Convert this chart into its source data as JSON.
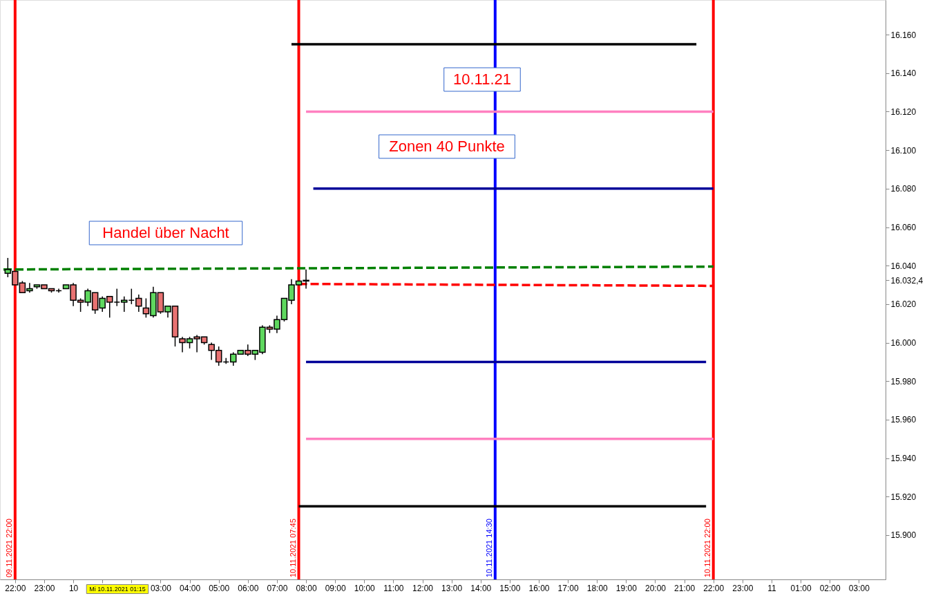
{
  "chart_data": {
    "type": "candlestick",
    "x": [
      "2021-11-09T21:45",
      "2021-11-09T22:00",
      "2021-11-09T22:15",
      "2021-11-09T22:30",
      "2021-11-09T22:45",
      "2021-11-09T23:00",
      "2021-11-09T23:15",
      "2021-11-09T23:30",
      "2021-11-09T23:45",
      "2021-11-10T00:00",
      "2021-11-10T00:15",
      "2021-11-10T00:30",
      "2021-11-10T00:45",
      "2021-11-10T01:00",
      "2021-11-10T01:15",
      "2021-11-10T01:30",
      "2021-11-10T01:45",
      "2021-11-10T02:00",
      "2021-11-10T02:15",
      "2021-11-10T02:30",
      "2021-11-10T02:45",
      "2021-11-10T03:00",
      "2021-11-10T03:15",
      "2021-11-10T03:30",
      "2021-11-10T03:45",
      "2021-11-10T04:00",
      "2021-11-10T04:15",
      "2021-11-10T04:30",
      "2021-11-10T04:45",
      "2021-11-10T05:00",
      "2021-11-10T05:15",
      "2021-11-10T05:30",
      "2021-11-10T05:45",
      "2021-11-10T06:00",
      "2021-11-10T06:15",
      "2021-11-10T06:30",
      "2021-11-10T06:45",
      "2021-11-10T07:00",
      "2021-11-10T07:15",
      "2021-11-10T07:30",
      "2021-11-10T07:45",
      "2021-11-10T08:00"
    ],
    "ohlc": [
      [
        16036,
        16044,
        16034,
        16038
      ],
      [
        16037,
        16037,
        16030,
        16030
      ],
      [
        16031,
        16032,
        16026,
        16026
      ],
      [
        16027,
        16031,
        16026,
        16028
      ],
      [
        16029,
        16030,
        16028,
        16030
      ],
      [
        16030,
        16030,
        16028,
        16028
      ],
      [
        16028,
        16028,
        16026,
        16027
      ],
      [
        16027,
        16028,
        16026,
        16027
      ],
      [
        16028,
        16030,
        16028,
        16030
      ],
      [
        16030,
        16031,
        16019,
        16022
      ],
      [
        16022,
        16023,
        16016,
        16021
      ],
      [
        16021,
        16028,
        16019,
        16027
      ],
      [
        16026,
        16026,
        16015,
        16017
      ],
      [
        16018,
        16024,
        16016,
        16023
      ],
      [
        16024,
        16024,
        16013,
        16021
      ],
      [
        16021,
        16028,
        16019,
        16021
      ],
      [
        16021,
        16024,
        16016,
        16022
      ],
      [
        16022,
        16028,
        16020,
        16022
      ],
      [
        16023,
        16025,
        16016,
        16019
      ],
      [
        16018,
        16023,
        16013,
        16015
      ],
      [
        16014,
        16029,
        16013,
        16026
      ],
      [
        16026,
        16026,
        16015,
        16016
      ],
      [
        16016,
        16019,
        16013,
        16019
      ],
      [
        16019,
        16019,
        15998,
        16003
      ],
      [
        16002,
        16003,
        15995,
        16000
      ],
      [
        16000,
        16003,
        15997,
        16002
      ],
      [
        16003,
        16004,
        15995,
        16002
      ],
      [
        16003,
        16003,
        15999,
        16000
      ],
      [
        15999,
        16000,
        15991,
        15996
      ],
      [
        15996,
        15998,
        15988,
        15990
      ],
      [
        15990,
        15992,
        15989,
        15990
      ],
      [
        15990,
        15995,
        15988,
        15994
      ],
      [
        15994,
        15996,
        15994,
        15996
      ],
      [
        15996,
        15999,
        15993,
        15994
      ],
      [
        15994,
        15996,
        15991,
        15996
      ],
      [
        15995,
        16009,
        15994,
        16008
      ],
      [
        16008,
        16009,
        16005,
        16007
      ],
      [
        16007,
        16014,
        16005,
        16012
      ],
      [
        16012,
        16023,
        16011,
        16023
      ],
      [
        16022,
        16033,
        16020,
        16030
      ],
      [
        16030,
        16032,
        16030,
        16032
      ],
      [
        16032,
        16038,
        16028,
        16032.4
      ]
    ],
    "series": [
      {
        "type": "line",
        "color": "#000000",
        "line_style": "solid",
        "x": [
          "2021-11-10T07:30",
          "2021-11-10T21:25"
        ],
        "values": [
          16155,
          16155
        ]
      },
      {
        "type": "line",
        "color": "#ff80c0",
        "line_style": "solid",
        "x": [
          "2021-11-10T08:00",
          "2021-11-10T22:00"
        ],
        "values": [
          16120,
          16120
        ]
      },
      {
        "type": "line",
        "color": "#000099",
        "line_style": "solid",
        "x": [
          "2021-11-10T08:15",
          "2021-11-10T22:00"
        ],
        "values": [
          16080,
          16080
        ]
      },
      {
        "type": "line",
        "color": "#000099",
        "line_style": "solid",
        "x": [
          "2021-11-10T08:00",
          "2021-11-10T21:45"
        ],
        "values": [
          15990,
          15990
        ]
      },
      {
        "type": "line",
        "color": "#ff80c0",
        "line_style": "solid",
        "x": [
          "2021-11-10T08:00",
          "2021-11-10T22:00"
        ],
        "values": [
          15950,
          15950
        ]
      },
      {
        "type": "line",
        "color": "#000000",
        "line_style": "solid",
        "x": [
          "2021-11-10T07:45",
          "2021-11-10T21:45"
        ],
        "values": [
          15915,
          15915
        ]
      },
      {
        "type": "line",
        "color": "#008000",
        "line_style": "dashed",
        "x": [
          "2021-11-09T21:36",
          "2021-11-10T22:00"
        ],
        "values": [
          16038,
          16039.5
        ]
      },
      {
        "type": "line",
        "color": "#ff0000",
        "line_style": "dashed",
        "x": [
          "2021-11-10T07:45",
          "2021-11-10T22:00"
        ],
        "values": [
          16030.5,
          16029.5
        ]
      }
    ],
    "ref_lines": [
      {
        "axis": "x",
        "value": "2021-11-09T22:00",
        "label": "09.11.2021 22:00",
        "color": "#ff0000"
      },
      {
        "axis": "x",
        "value": "2021-11-10T07:45",
        "label": "10.11.2021 07:45",
        "color": "#ff0000"
      },
      {
        "axis": "x",
        "value": "2021-11-10T14:30",
        "label": "10.11.2021 14:30",
        "color": "#0000ff"
      },
      {
        "axis": "x",
        "value": "2021-11-10T22:00",
        "label": "10.11.2021 22:00",
        "color": "#ff0000"
      }
    ],
    "xlim": [
      "2021-11-09T21:36",
      "2021-11-11T03:48"
    ],
    "xticks": [
      {
        "value": "2021-11-09T22:00",
        "label": "22:00"
      },
      {
        "value": "2021-11-09T23:00",
        "label": "23:00"
      },
      {
        "value": "2021-11-10T00:00",
        "label": "10"
      },
      {
        "value": "2021-11-10T01:00",
        "label": null
      },
      {
        "value": "2021-11-10T02:00",
        "label": null
      },
      {
        "value": "2021-11-10T03:00",
        "label": "03:00"
      },
      {
        "value": "2021-11-10T04:00",
        "label": "04:00"
      },
      {
        "value": "2021-11-10T05:00",
        "label": "05:00"
      },
      {
        "value": "2021-11-10T06:00",
        "label": "06:00"
      },
      {
        "value": "2021-11-10T07:00",
        "label": "07:00"
      },
      {
        "value": "2021-11-10T08:00",
        "label": "08:00"
      },
      {
        "value": "2021-11-10T09:00",
        "label": "09:00"
      },
      {
        "value": "2021-11-10T10:00",
        "label": "10:00"
      },
      {
        "value": "2021-11-10T11:00",
        "label": "11:00"
      },
      {
        "value": "2021-11-10T12:00",
        "label": "12:00"
      },
      {
        "value": "2021-11-10T13:00",
        "label": "13:00"
      },
      {
        "value": "2021-11-10T14:00",
        "label": "14:00"
      },
      {
        "value": "2021-11-10T15:00",
        "label": "15:00"
      },
      {
        "value": "2021-11-10T16:00",
        "label": "16:00"
      },
      {
        "value": "2021-11-10T17:00",
        "label": "17:00"
      },
      {
        "value": "2021-11-10T18:00",
        "label": "18:00"
      },
      {
        "value": "2021-11-10T19:00",
        "label": "19:00"
      },
      {
        "value": "2021-11-10T20:00",
        "label": "20:00"
      },
      {
        "value": "2021-11-10T21:00",
        "label": "21:00"
      },
      {
        "value": "2021-11-10T22:00",
        "label": "22:00"
      },
      {
        "value": "2021-11-10T23:00",
        "label": "23:00"
      },
      {
        "value": "2021-11-11T00:00",
        "label": "11"
      },
      {
        "value": "2021-11-11T01:00",
        "label": "01:00"
      },
      {
        "value": "2021-11-11T02:00",
        "label": "02:00"
      },
      {
        "value": "2021-11-11T03:00",
        "label": "03:00"
      }
    ],
    "ylim": [
      15877,
      16178
    ],
    "yticks": [
      {
        "value": 15900,
        "label": "15.900"
      },
      {
        "value": 15920,
        "label": "15.920"
      },
      {
        "value": 15940,
        "label": "15.940"
      },
      {
        "value": 15960,
        "label": "15.960"
      },
      {
        "value": 15980,
        "label": "15.980"
      },
      {
        "value": 16000,
        "label": "16.000"
      },
      {
        "value": 16020,
        "label": "16.020"
      },
      {
        "value": 16032.4,
        "label": "16.032,4"
      },
      {
        "value": 16040,
        "label": "16.040"
      },
      {
        "value": 16060,
        "label": "16.060"
      },
      {
        "value": 16080,
        "label": "16.080"
      },
      {
        "value": 16100,
        "label": "16.100"
      },
      {
        "value": 16120,
        "label": "16.120"
      },
      {
        "value": 16140,
        "label": "16.140"
      },
      {
        "value": 16160,
        "label": "16.160"
      }
    ],
    "annotations": [
      "Handel über Nacht",
      "Zonen 40 Punkte",
      "10.11.21",
      "Mi 10.11.2021 01:15"
    ]
  }
}
